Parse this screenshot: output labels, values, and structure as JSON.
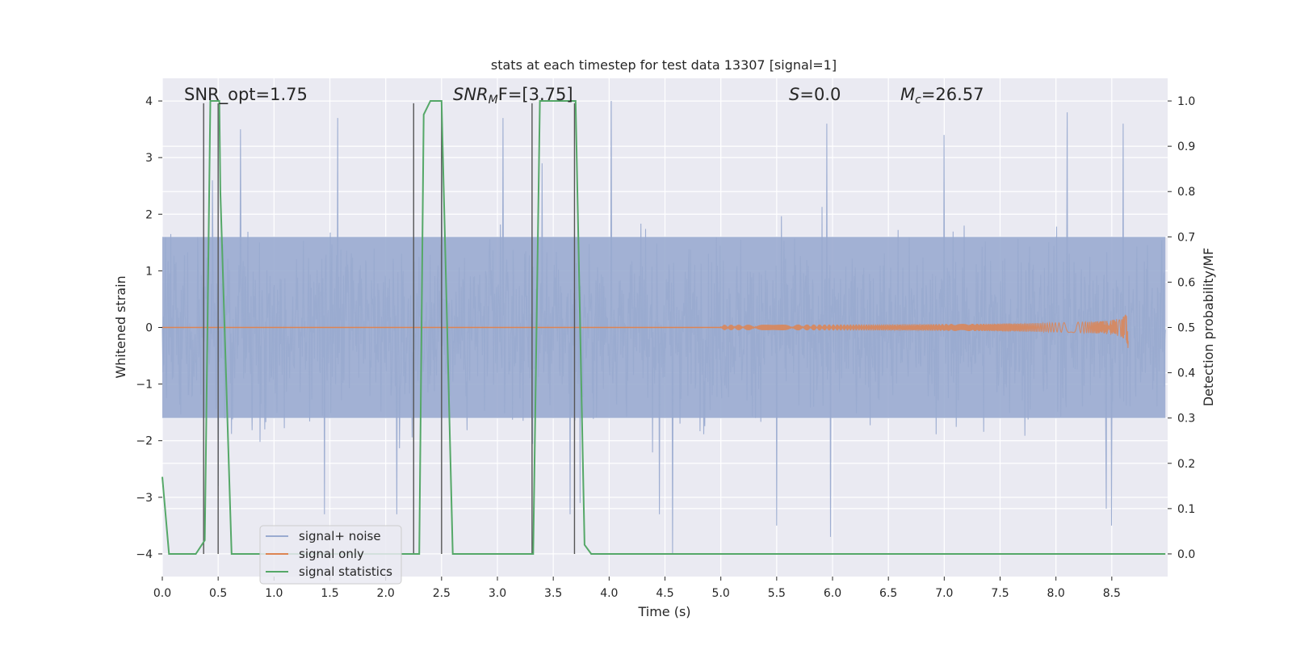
{
  "chart_data": {
    "type": "line",
    "title": "stats at each timestep for test data 13307 [signal=1]",
    "xlabel": "Time (s)",
    "ylabel_left": "Whitened strain",
    "ylabel_right": "Detection probability/MF",
    "xlim": [
      0,
      9.0
    ],
    "ylim_left": [
      -4.4,
      4.4
    ],
    "ylim_right": [
      -0.05,
      1.05
    ],
    "x_ticks": [
      "0.0",
      "0.5",
      "1.0",
      "1.5",
      "2.0",
      "2.5",
      "3.0",
      "3.5",
      "4.0",
      "4.5",
      "5.0",
      "5.5",
      "6.0",
      "6.5",
      "7.0",
      "7.5",
      "8.0",
      "8.5"
    ],
    "y_left_ticks": [
      "4",
      "3",
      "2",
      "1",
      "0",
      "−1",
      "−2",
      "−3",
      "−4"
    ],
    "y_right_ticks": [
      "1.0",
      "0.9",
      "0.8",
      "0.7",
      "0.6",
      "0.5",
      "0.4",
      "0.3",
      "0.2",
      "0.1",
      "0.0"
    ],
    "grid": true,
    "legend_position": "lower-left",
    "colors": {
      "background": "#eaeaf2",
      "grid": "#ffffff",
      "noise": "#9aabd0",
      "signal": "#dd8452",
      "statistics": "#55a868",
      "vlines": "#555555"
    },
    "annotations": {
      "snr_opt": "SNR_opt=1.75",
      "snr_mf_prefix": "SNR",
      "snr_mf_sub": "M",
      "snr_mf_rest": "F=[3.75]",
      "s_sym": "S",
      "s_rest": "=0.0",
      "mc_sym": "M",
      "mc_sub": "c",
      "mc_rest": "=26.57"
    },
    "series": [
      {
        "name": "signal+ noise",
        "kind": "noise",
        "t_end": 8.98,
        "band": [
          -1.6,
          1.6
        ],
        "extremes": [
          {
            "x": 0.45,
            "y": 2.6
          },
          {
            "x": 0.5,
            "y": -2.8
          },
          {
            "x": 0.7,
            "y": 3.5
          },
          {
            "x": 1.45,
            "y": -3.3
          },
          {
            "x": 1.57,
            "y": 3.7
          },
          {
            "x": 2.1,
            "y": -3.3
          },
          {
            "x": 2.5,
            "y": 3.3
          },
          {
            "x": 3.05,
            "y": 3.7
          },
          {
            "x": 3.4,
            "y": 2.9
          },
          {
            "x": 3.65,
            "y": -3.3
          },
          {
            "x": 3.74,
            "y": -3.1
          },
          {
            "x": 4.02,
            "y": 4.0
          },
          {
            "x": 4.45,
            "y": -3.3
          },
          {
            "x": 4.57,
            "y": -4.0
          },
          {
            "x": 5.5,
            "y": -3.5
          },
          {
            "x": 5.95,
            "y": 3.6
          },
          {
            "x": 5.98,
            "y": -3.7
          },
          {
            "x": 7.0,
            "y": 3.4
          },
          {
            "x": 8.1,
            "y": 3.8
          },
          {
            "x": 8.45,
            "y": -3.2
          },
          {
            "x": 8.5,
            "y": -3.5
          },
          {
            "x": 8.6,
            "y": 3.6
          }
        ]
      },
      {
        "name": "signal only",
        "kind": "chirp",
        "t_merger": 8.65,
        "peak_amplitude": 0.42
      },
      {
        "name": "signal statistics",
        "kind": "probability",
        "x": [
          0.0,
          0.06,
          0.1,
          0.3,
          0.38,
          0.43,
          0.46,
          0.51,
          0.52,
          0.62,
          2.2,
          2.3,
          2.34,
          2.4,
          2.5,
          2.6,
          3.3,
          3.32,
          3.38,
          3.4,
          3.7,
          3.78,
          3.84,
          8.98
        ],
        "y": [
          0.17,
          0.0,
          0.0,
          0.0,
          0.03,
          1.0,
          1.0,
          1.0,
          0.8,
          0.0,
          0.0,
          0.0,
          0.97,
          1.0,
          1.0,
          0.0,
          0.0,
          0.0,
          1.0,
          1.0,
          1.0,
          0.02,
          0.0,
          0.0
        ]
      }
    ],
    "vertical_lines": [
      0.37,
      0.5,
      2.25,
      2.5,
      3.31,
      3.69
    ]
  }
}
